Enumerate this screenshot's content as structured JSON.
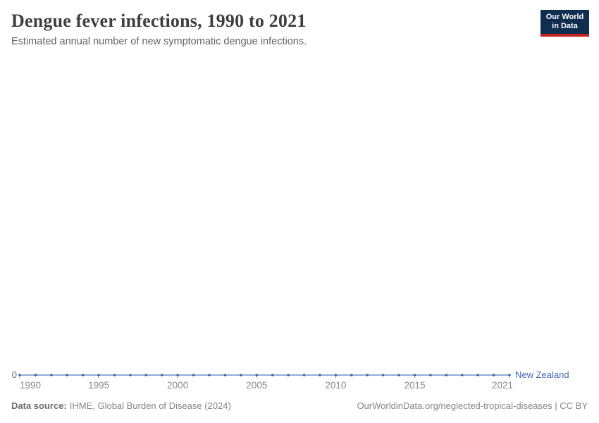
{
  "header": {
    "title": "Dengue fever infections, 1990 to 2021",
    "subtitle": "Estimated annual number of new symptomatic dengue infections."
  },
  "logo": {
    "line1": "Our World",
    "line2": "in Data",
    "background_color": "#0e2d4f",
    "accent_color": "#c8231e"
  },
  "chart": {
    "y_axis": {
      "zero_label": "0"
    },
    "x_axis": {
      "tick_years": [
        1990,
        1995,
        2000,
        2005,
        2010,
        2015,
        2021
      ]
    },
    "series_label": "New Zealand",
    "colors": {
      "line": "#7490c6",
      "dot": "#3d63ad",
      "tick": "#9daac6",
      "series_label": "#4267b1"
    }
  },
  "chart_data": {
    "type": "line",
    "title": "Dengue fever infections, 1990 to 2021",
    "subtitle": "Estimated annual number of new symptomatic dengue infections.",
    "xlabel": "",
    "ylabel": "",
    "x": [
      1990,
      1991,
      1992,
      1993,
      1994,
      1995,
      1996,
      1997,
      1998,
      1999,
      2000,
      2001,
      2002,
      2003,
      2004,
      2005,
      2006,
      2007,
      2008,
      2009,
      2010,
      2011,
      2012,
      2013,
      2014,
      2015,
      2016,
      2017,
      2018,
      2019,
      2020,
      2021
    ],
    "series": [
      {
        "name": "New Zealand",
        "values": [
          0,
          0,
          0,
          0,
          0,
          0,
          0,
          0,
          0,
          0,
          0,
          0,
          0,
          0,
          0,
          0,
          0,
          0,
          0,
          0,
          0,
          0,
          0,
          0,
          0,
          0,
          0,
          0,
          0,
          0,
          0,
          0
        ]
      }
    ],
    "xlim": [
      1990,
      2021
    ],
    "ylim": [
      0,
      0
    ],
    "x_ticks_shown": [
      1990,
      1995,
      2000,
      2005,
      2010,
      2015,
      2021
    ],
    "y_ticks_shown": [
      0
    ],
    "grid": false,
    "legend_position": "end-of-line"
  },
  "footer": {
    "source_label": "Data source:",
    "source_value": "IHME, Global Burden of Disease (2024)",
    "credit": "OurWorldinData.org/neglected-tropical-diseases | CC BY"
  }
}
